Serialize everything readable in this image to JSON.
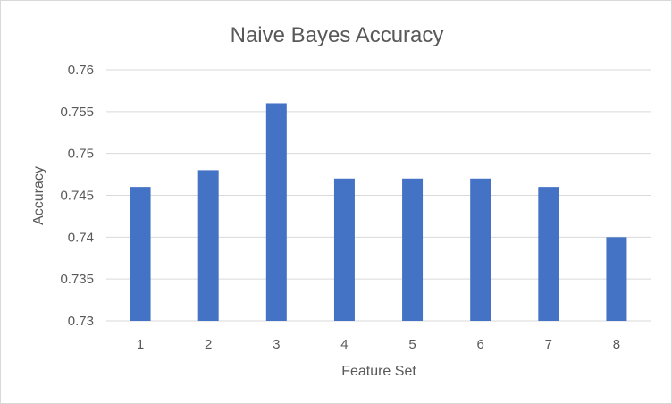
{
  "chart_data": {
    "type": "bar",
    "title": "Naive Bayes Accuracy",
    "xlabel": "Feature Set",
    "ylabel": "Accuracy",
    "categories": [
      "1",
      "2",
      "3",
      "4",
      "5",
      "6",
      "7",
      "8"
    ],
    "values": [
      0.746,
      0.748,
      0.756,
      0.747,
      0.747,
      0.747,
      0.746,
      0.74
    ],
    "ylim": [
      0.73,
      0.76
    ],
    "yticks": [
      "0.73",
      "0.735",
      "0.74",
      "0.745",
      "0.75",
      "0.755",
      "0.76"
    ],
    "grid": true,
    "legend": "none",
    "bar_color": "#4472C4"
  }
}
